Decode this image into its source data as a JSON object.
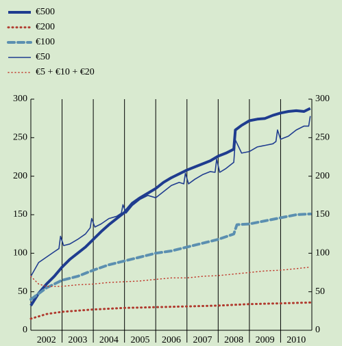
{
  "chart_data": {
    "type": "line",
    "xlim": [
      2002,
      2011
    ],
    "xticks": [
      {
        "value": 2002.5,
        "label": "2002"
      },
      {
        "value": 2003.5,
        "label": "2003"
      },
      {
        "value": 2004.5,
        "label": "2004"
      },
      {
        "value": 2005.5,
        "label": "2005"
      },
      {
        "value": 2006.5,
        "label": "2006"
      },
      {
        "value": 2007.5,
        "label": "2007"
      },
      {
        "value": 2008.5,
        "label": "2008"
      },
      {
        "value": 2009.5,
        "label": "2009"
      },
      {
        "value": 2010.5,
        "label": "2010"
      }
    ],
    "ylim": [
      0,
      300
    ],
    "yticks": [
      0,
      50,
      100,
      150,
      200,
      250,
      300
    ],
    "series": [
      {
        "name": "€500",
        "color": "#1f3c8f",
        "width": 4,
        "dash": "none",
        "x": [
          2002,
          2002.25,
          2002.5,
          2002.75,
          2003,
          2003.25,
          2003.5,
          2003.75,
          2004,
          2004.25,
          2004.5,
          2004.75,
          2005,
          2005.25,
          2005.5,
          2005.75,
          2006,
          2006.25,
          2006.5,
          2006.75,
          2007,
          2007.25,
          2007.5,
          2007.75,
          2008,
          2008.25,
          2008.5,
          2008.55,
          2008.75,
          2009,
          2009.25,
          2009.5,
          2009.75,
          2010,
          2010.25,
          2010.5,
          2010.75,
          2010.95
        ],
        "values": [
          32,
          48,
          60,
          70,
          82,
          92,
          100,
          108,
          118,
          128,
          137,
          145,
          153,
          165,
          172,
          178,
          184,
          192,
          198,
          203,
          208,
          212,
          216,
          220,
          226,
          230,
          235,
          260,
          266,
          272,
          274,
          275,
          279,
          282,
          284,
          285,
          284,
          288
        ]
      },
      {
        "name": "€200",
        "color": "#b03a2e",
        "width": 3,
        "dash": "1 5",
        "x": [
          2002,
          2002.5,
          2003,
          2004,
          2005,
          2006,
          2007,
          2008,
          2009,
          2010,
          2010.95
        ],
        "values": [
          15,
          21,
          24,
          27,
          29,
          30,
          31,
          32,
          34,
          35,
          36
        ]
      },
      {
        "name": "€100",
        "color": "#5b8fb0",
        "width": 4,
        "dash": "9 5",
        "x": [
          2002,
          2002.5,
          2003,
          2003.5,
          2004,
          2004.5,
          2005,
          2005.5,
          2006,
          2006.5,
          2007,
          2007.5,
          2008,
          2008.5,
          2008.6,
          2009,
          2009.5,
          2010,
          2010.5,
          2010.95
        ],
        "values": [
          40,
          55,
          65,
          70,
          78,
          85,
          90,
          95,
          100,
          103,
          108,
          113,
          118,
          125,
          137,
          138,
          142,
          146,
          150,
          151
        ]
      },
      {
        "name": "€50",
        "color": "#1f3c8f",
        "width": 1.6,
        "dash": "none",
        "x": [
          2002,
          2002.25,
          2002.5,
          2002.75,
          2002.9,
          2002.95,
          2003.05,
          2003.25,
          2003.5,
          2003.75,
          2003.9,
          2003.95,
          2004.05,
          2004.25,
          2004.5,
          2004.75,
          2004.9,
          2004.95,
          2005.05,
          2005.25,
          2005.5,
          2005.75,
          2006,
          2006.25,
          2006.5,
          2006.75,
          2006.9,
          2006.95,
          2007.05,
          2007.25,
          2007.5,
          2007.75,
          2007.9,
          2007.95,
          2008.05,
          2008.25,
          2008.5,
          2008.55,
          2008.75,
          2009,
          2009.25,
          2009.5,
          2009.75,
          2009.85,
          2009.9,
          2010,
          2010.25,
          2010.5,
          2010.75,
          2010.9,
          2010.95
        ],
        "values": [
          70,
          88,
          95,
          102,
          106,
          122,
          110,
          112,
          118,
          125,
          133,
          145,
          134,
          138,
          145,
          148,
          152,
          163,
          152,
          162,
          170,
          175,
          172,
          180,
          188,
          192,
          190,
          204,
          190,
          196,
          202,
          206,
          205,
          222,
          205,
          210,
          218,
          247,
          230,
          232,
          238,
          240,
          242,
          245,
          260,
          248,
          252,
          260,
          265,
          265,
          278
        ]
      },
      {
        "name": "€5 + €10 + €20",
        "color": "#c0392b",
        "width": 1.5,
        "dash": "1 4",
        "x": [
          2002,
          2002.25,
          2002.5,
          2003,
          2003.5,
          2004,
          2004.5,
          2005,
          2005.5,
          2006,
          2006.5,
          2007,
          2007.5,
          2008,
          2008.5,
          2009,
          2009.5,
          2010,
          2010.5,
          2010.95
        ],
        "values": [
          70,
          60,
          57,
          57,
          59,
          60,
          62,
          63,
          64,
          66,
          68,
          68,
          70,
          71,
          73,
          75,
          77,
          78,
          80,
          82
        ]
      }
    ]
  }
}
